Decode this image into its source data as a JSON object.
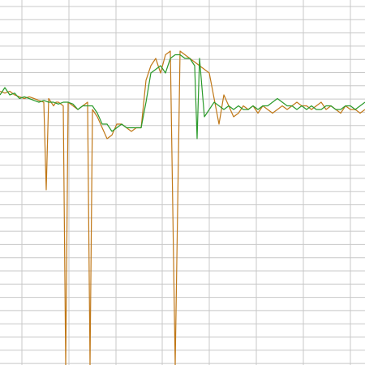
{
  "chart_data": {
    "type": "line",
    "title": "",
    "xlabel": "",
    "ylabel": "",
    "grid": true,
    "legend": "none",
    "xlim": [
      0,
      150
    ],
    "ylim": [
      0,
      100
    ],
    "colors": {
      "grid": "#c8c8c8",
      "background": "#ffffff"
    },
    "series": [
      {
        "color": "#c07818",
        "x": [
          0,
          2,
          4,
          6,
          8,
          10,
          12,
          14,
          16,
          18,
          19,
          20,
          22,
          23,
          24,
          26,
          27,
          28,
          30,
          32,
          34,
          36,
          37,
          38,
          40,
          42,
          44,
          46,
          48,
          50,
          52,
          54,
          56,
          58,
          60,
          62,
          64,
          66,
          68,
          70,
          72,
          74,
          76,
          78,
          80,
          82,
          84,
          86,
          88,
          90,
          92,
          94,
          96,
          98,
          100,
          102,
          104,
          106,
          108,
          110,
          112,
          114,
          116,
          118,
          120,
          122,
          124,
          126,
          128,
          130,
          132,
          134,
          136,
          138,
          140,
          142,
          144,
          146,
          148,
          150
        ],
        "values": [
          75,
          74.5,
          75,
          74,
          73.5,
          73,
          73.5,
          73,
          72.5,
          72,
          48,
          73,
          71,
          72,
          72,
          71,
          0,
          72,
          71,
          70,
          71,
          72,
          0,
          70,
          68,
          65,
          62,
          63,
          66,
          66,
          65,
          64,
          65,
          65,
          78,
          82,
          84,
          80,
          85,
          86,
          0,
          86,
          85,
          84,
          83,
          82,
          81,
          80,
          73,
          66,
          74,
          71,
          68,
          69,
          71,
          70,
          71,
          69,
          71,
          70,
          69,
          70,
          71,
          70,
          71,
          72,
          71,
          71,
          70,
          71,
          72,
          70,
          71,
          70,
          69,
          71,
          70,
          70,
          69,
          70
        ]
      },
      {
        "color": "#2a9a2a",
        "x": [
          0,
          2,
          4,
          6,
          8,
          10,
          12,
          14,
          16,
          18,
          20,
          22,
          24,
          26,
          28,
          30,
          32,
          34,
          36,
          38,
          40,
          42,
          44,
          46,
          48,
          50,
          52,
          54,
          56,
          58,
          60,
          62,
          64,
          66,
          68,
          70,
          72,
          74,
          76,
          78,
          80,
          81,
          82,
          84,
          86,
          88,
          90,
          92,
          94,
          96,
          98,
          100,
          102,
          104,
          106,
          108,
          110,
          112,
          114,
          116,
          118,
          120,
          122,
          124,
          126,
          128,
          130,
          132,
          134,
          136,
          138,
          140,
          142,
          144,
          146,
          148,
          150
        ],
        "values": [
          74,
          76,
          74,
          74.5,
          73,
          73.5,
          73,
          72.5,
          72,
          72.5,
          72,
          72,
          71.5,
          72,
          72,
          71.5,
          70,
          71,
          71,
          71,
          69,
          66,
          66,
          64,
          65,
          66,
          65,
          65,
          65,
          65,
          72,
          80,
          81,
          82,
          80,
          84,
          85,
          85,
          84,
          84,
          82,
          62,
          84,
          68,
          70,
          72,
          71,
          70,
          71,
          70,
          71,
          70,
          70,
          71,
          70,
          71,
          71,
          72,
          73,
          72,
          71,
          71,
          70,
          71,
          70,
          71,
          70,
          70,
          71,
          71,
          70,
          70,
          71,
          71,
          70,
          71,
          72
        ]
      }
    ]
  }
}
